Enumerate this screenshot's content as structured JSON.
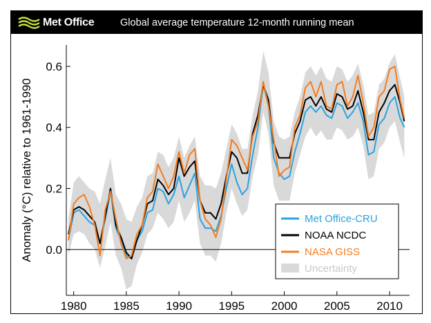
{
  "header": {
    "brand": "Met Office",
    "title": "Global average temperature 12-month running mean"
  },
  "chart_data": {
    "type": "line",
    "title": "Global average temperature 12-month running mean",
    "xlabel": "",
    "ylabel": "Anomaly (°C) relative to 1961-1990",
    "xlim": [
      1979.3,
      2011.9
    ],
    "ylim": [
      -0.15,
      0.67
    ],
    "x_ticks": [
      1980,
      1985,
      1990,
      1995,
      2000,
      2005,
      2010
    ],
    "x_tick_labels": [
      "1980",
      "1985",
      "1990",
      "1995",
      "2000",
      "2005",
      "2010"
    ],
    "y_ticks": [
      0.0,
      0.2,
      0.4,
      0.6
    ],
    "y_tick_labels": [
      "0.0",
      "0.2",
      "0.4",
      "0.6"
    ],
    "zero_line": 0.0,
    "legend_position": "bottom-right",
    "x": [
      1979.5,
      1980.0,
      1980.5,
      1981.0,
      1981.5,
      1982.0,
      1982.5,
      1983.0,
      1983.5,
      1984.0,
      1984.5,
      1985.0,
      1985.5,
      1986.0,
      1986.5,
      1987.0,
      1987.5,
      1988.0,
      1988.5,
      1989.0,
      1989.5,
      1990.0,
      1990.5,
      1991.0,
      1991.5,
      1992.0,
      1992.5,
      1993.0,
      1993.5,
      1994.0,
      1994.5,
      1995.0,
      1995.5,
      1996.0,
      1996.5,
      1997.0,
      1997.5,
      1998.0,
      1998.5,
      1999.0,
      1999.5,
      2000.0,
      2000.5,
      2001.0,
      2001.5,
      2002.0,
      2002.5,
      2003.0,
      2003.5,
      2004.0,
      2004.5,
      2005.0,
      2005.5,
      2006.0,
      2006.5,
      2007.0,
      2007.5,
      2008.0,
      2008.5,
      2009.0,
      2009.5,
      2010.0,
      2010.5,
      2011.0,
      2011.4
    ],
    "series": [
      {
        "name": "Met Office-CRU",
        "color": "#29a3e0",
        "values": [
          0.03,
          0.12,
          0.13,
          0.11,
          0.09,
          0.08,
          0.02,
          0.1,
          0.19,
          0.07,
          0.03,
          -0.02,
          -0.03,
          0.03,
          0.06,
          0.12,
          0.13,
          0.2,
          0.19,
          0.15,
          0.18,
          0.24,
          0.17,
          0.21,
          0.25,
          0.1,
          0.07,
          0.07,
          0.06,
          0.11,
          0.2,
          0.28,
          0.22,
          0.18,
          0.2,
          0.31,
          0.4,
          0.54,
          0.47,
          0.3,
          0.25,
          0.23,
          0.24,
          0.32,
          0.38,
          0.45,
          0.47,
          0.45,
          0.47,
          0.44,
          0.43,
          0.48,
          0.47,
          0.43,
          0.45,
          0.48,
          0.42,
          0.31,
          0.32,
          0.41,
          0.43,
          0.48,
          0.5,
          0.43,
          0.4
        ]
      },
      {
        "name": "NOAA NCDC",
        "color": "#000000",
        "values": [
          0.05,
          0.13,
          0.14,
          0.13,
          0.11,
          0.09,
          0.02,
          0.11,
          0.2,
          0.08,
          0.04,
          -0.01,
          -0.03,
          0.03,
          0.08,
          0.15,
          0.16,
          0.23,
          0.21,
          0.18,
          0.2,
          0.3,
          0.24,
          0.27,
          0.29,
          0.16,
          0.12,
          0.12,
          0.1,
          0.15,
          0.24,
          0.32,
          0.3,
          0.25,
          0.25,
          0.38,
          0.44,
          0.54,
          0.49,
          0.35,
          0.3,
          0.3,
          0.3,
          0.38,
          0.42,
          0.49,
          0.5,
          0.47,
          0.5,
          0.46,
          0.45,
          0.51,
          0.5,
          0.46,
          0.47,
          0.52,
          0.45,
          0.36,
          0.36,
          0.45,
          0.48,
          0.52,
          0.54,
          0.48,
          0.42
        ]
      },
      {
        "name": "NASA GISS",
        "color": "#f47c20",
        "values": [
          0.03,
          0.15,
          0.17,
          0.18,
          0.14,
          0.08,
          -0.02,
          0.13,
          0.19,
          0.1,
          0.02,
          -0.03,
          -0.02,
          0.05,
          0.08,
          0.17,
          0.19,
          0.28,
          0.24,
          0.2,
          0.24,
          0.32,
          0.25,
          0.31,
          0.33,
          0.16,
          0.1,
          0.08,
          0.04,
          0.1,
          0.23,
          0.36,
          0.34,
          0.3,
          0.26,
          0.37,
          0.42,
          0.55,
          0.47,
          0.36,
          0.24,
          0.26,
          0.27,
          0.4,
          0.44,
          0.53,
          0.55,
          0.5,
          0.55,
          0.47,
          0.46,
          0.54,
          0.55,
          0.47,
          0.5,
          0.57,
          0.48,
          0.37,
          0.4,
          0.5,
          0.52,
          0.59,
          0.6,
          0.49,
          0.43
        ]
      }
    ],
    "uncertainty": {
      "name": "Uncertainty",
      "color": "#d9d9d9",
      "lower": [
        -0.02,
        0.05,
        0.06,
        0.05,
        0.02,
        0.0,
        -0.06,
        0.01,
        0.09,
        -0.02,
        -0.06,
        -0.13,
        -0.12,
        -0.05,
        -0.01,
        0.05,
        0.07,
        0.12,
        0.1,
        0.07,
        0.09,
        0.16,
        0.09,
        0.12,
        0.16,
        0.02,
        -0.02,
        -0.02,
        -0.04,
        0.02,
        0.12,
        0.2,
        0.15,
        0.11,
        0.13,
        0.24,
        0.31,
        0.45,
        0.38,
        0.21,
        0.16,
        0.16,
        0.16,
        0.25,
        0.31,
        0.37,
        0.4,
        0.37,
        0.39,
        0.36,
        0.36,
        0.4,
        0.39,
        0.36,
        0.37,
        0.4,
        0.34,
        0.23,
        0.24,
        0.33,
        0.35,
        0.4,
        0.42,
        0.35,
        0.3
      ],
      "upper": [
        0.1,
        0.22,
        0.24,
        0.22,
        0.2,
        0.19,
        0.15,
        0.23,
        0.3,
        0.18,
        0.15,
        0.1,
        0.09,
        0.14,
        0.17,
        0.24,
        0.25,
        0.32,
        0.31,
        0.27,
        0.3,
        0.37,
        0.3,
        0.34,
        0.37,
        0.24,
        0.21,
        0.21,
        0.2,
        0.25,
        0.33,
        0.41,
        0.38,
        0.33,
        0.33,
        0.44,
        0.52,
        0.65,
        0.58,
        0.42,
        0.37,
        0.36,
        0.37,
        0.45,
        0.5,
        0.58,
        0.6,
        0.57,
        0.6,
        0.56,
        0.55,
        0.6,
        0.59,
        0.55,
        0.57,
        0.61,
        0.54,
        0.44,
        0.45,
        0.54,
        0.56,
        0.61,
        0.64,
        0.56,
        0.5
      ]
    }
  }
}
